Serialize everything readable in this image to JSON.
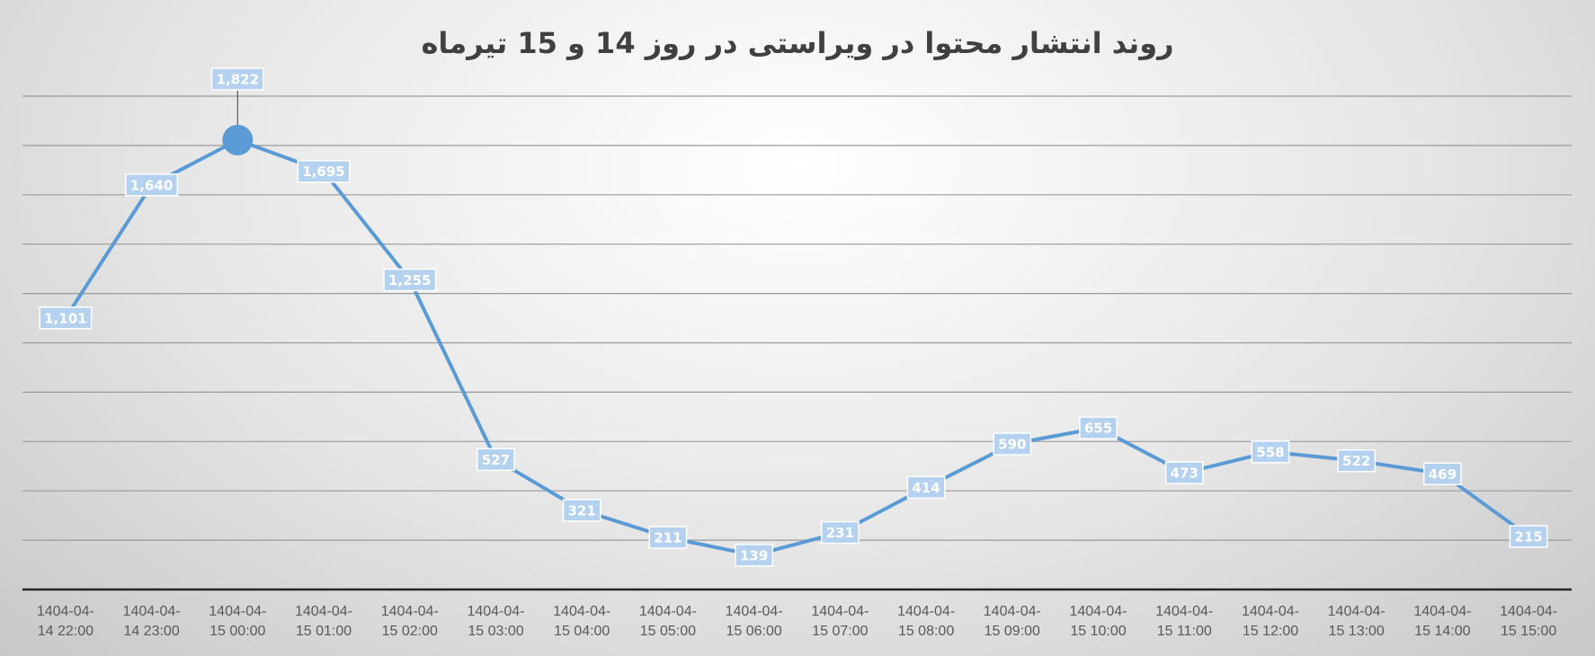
{
  "chart_data": {
    "type": "line",
    "title": "روند انتشار محتوا در ویراستی در روز 14 و 15 تیرماه",
    "categories": [
      "1404-04-14 22:00",
      "1404-04-14 23:00",
      "1404-04-15 00:00",
      "1404-04-15 01:00",
      "1404-04-15 02:00",
      "1404-04-15 03:00",
      "1404-04-15 04:00",
      "1404-04-15 05:00",
      "1404-04-15 06:00",
      "1404-04-15 07:00",
      "1404-04-15 08:00",
      "1404-04-15 09:00",
      "1404-04-15 10:00",
      "1404-04-15 11:00",
      "1404-04-15 12:00",
      "1404-04-15 13:00",
      "1404-04-15 14:00",
      "1404-04-15 15:00"
    ],
    "values": [
      1101,
      1640,
      1822,
      1695,
      1255,
      527,
      321,
      211,
      139,
      231,
      414,
      590,
      655,
      473,
      558,
      522,
      469,
      215
    ],
    "value_labels": [
      "1,101",
      "1,640",
      "1,822",
      "1,695",
      "1,255",
      "527",
      "321",
      "211",
      "139",
      "231",
      "414",
      "590",
      "655",
      "473",
      "558",
      "522",
      "469",
      "215"
    ],
    "color": "#5b9bd5",
    "highlight_index": 2,
    "ylim": [
      0,
      2000
    ],
    "yticks": [
      0,
      200,
      400,
      600,
      800,
      1000,
      1200,
      1400,
      1600,
      1800,
      2000
    ],
    "grid": true
  }
}
